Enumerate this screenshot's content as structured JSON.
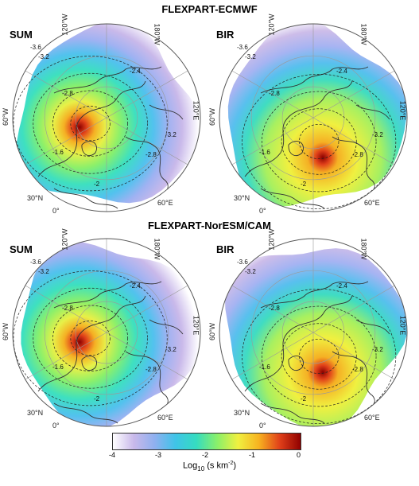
{
  "titles": {
    "top": "FLEXPART-ECMWF",
    "bottom": "FLEXPART-NorESM/CAM"
  },
  "panels": [
    {
      "label": "SUM",
      "peak": "hudson",
      "variant": 1
    },
    {
      "label": "BIR",
      "peak": "siberia",
      "variant": 2
    },
    {
      "label": "SUM",
      "peak": "hudson",
      "variant": 3
    },
    {
      "label": "BIR",
      "peak": "siberia",
      "variant": 4
    }
  ],
  "grid_labels": {
    "w180": "180°W",
    "w120": "120°W",
    "w60": "60°W",
    "e120": "120°E",
    "e60": "60°E",
    "zero": "0°",
    "n30": "30°N"
  },
  "contour_labels": [
    "-3.2",
    "-3.6",
    "-2.8",
    "-2.4",
    "-2",
    "-1.6",
    "-2.8",
    "-3.2"
  ],
  "colorbar": {
    "ticks": [
      "-4",
      "-3",
      "-2",
      "-1",
      "0"
    ],
    "label_base": "Log",
    "label_sub": "10",
    "label_unit": " (s km",
    "label_sup": "-2",
    "label_end": ")",
    "colors": [
      "#ffffff",
      "#c9b9ea",
      "#8fb0f0",
      "#3fc4e8",
      "#35dcc0",
      "#8af06a",
      "#f0f040",
      "#f7b320",
      "#e0401a",
      "#900000"
    ]
  }
}
